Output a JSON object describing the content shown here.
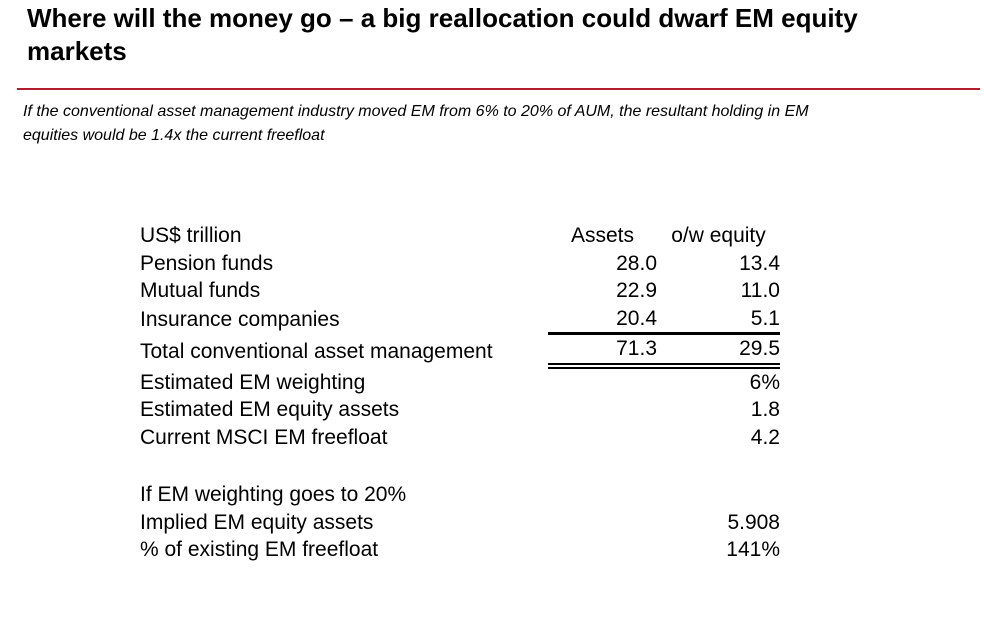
{
  "title": "Where will the money go – a big reallocation could dwarf EM equity markets",
  "subtitle": "If the conventional asset management industry moved EM from 6% to 20% of AUM, the resultant holding in EM equities would be 1.4x the current freefloat",
  "accent_color": "#B01E2E",
  "asset_table": {
    "headers": {
      "label": "US$ trillion",
      "assets": "Assets",
      "equity": "o/w equity"
    },
    "rows": [
      {
        "label": "Pension funds",
        "assets": "28.0",
        "equity": "13.4"
      },
      {
        "label": "Mutual funds",
        "assets": "22.9",
        "equity": "11.0"
      },
      {
        "label": "Insurance companies",
        "assets": "20.4",
        "equity": "5.1"
      },
      {
        "label": "Total conventional asset management",
        "assets": "71.3",
        "equity": "29.5"
      },
      {
        "label": "Estimated EM weighting",
        "assets": "",
        "equity": "6%"
      },
      {
        "label": "Estimated EM equity assets",
        "assets": "",
        "equity": "1.8"
      },
      {
        "label": "Current MSCI EM freefloat",
        "assets": "",
        "equity": "4.2"
      },
      {
        "label": "If EM weighting goes to 20%",
        "assets": "",
        "equity": ""
      },
      {
        "label": "Implied EM equity assets",
        "assets": "",
        "equity": "5.908"
      },
      {
        "label": "% of existing EM freefloat",
        "assets": "",
        "equity": "141%"
      }
    ]
  }
}
